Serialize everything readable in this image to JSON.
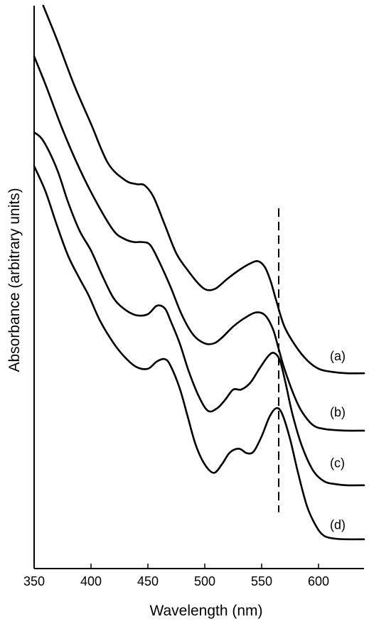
{
  "chart_data": {
    "type": "line",
    "title": "",
    "xlabel": "Wavelength (nm)",
    "ylabel": "Absorbance (arbitrary units)",
    "xlim": [
      350,
      640
    ],
    "ylim": [
      0,
      100
    ],
    "y_tick_labels_shown": false,
    "grid": false,
    "legend": "none",
    "x_ticks": [
      350,
      400,
      450,
      500,
      550,
      600
    ],
    "x_tick_labels": [
      "350",
      "400",
      "450",
      "500",
      "550",
      "600"
    ],
    "reference_line": {
      "x": 565,
      "y_range": [
        10,
        64
      ],
      "style": "dashed"
    },
    "series": [
      {
        "name": "(a)",
        "label_at": {
          "x": 610,
          "y": 37
        },
        "points": [
          [
            358,
            100
          ],
          [
            370,
            94
          ],
          [
            385,
            86
          ],
          [
            400,
            79
          ],
          [
            415,
            72
          ],
          [
            430,
            69
          ],
          [
            440,
            68.3
          ],
          [
            447,
            68.1
          ],
          [
            455,
            66
          ],
          [
            465,
            61
          ],
          [
            475,
            56
          ],
          [
            485,
            53
          ],
          [
            495,
            50.5
          ],
          [
            502,
            49.5
          ],
          [
            510,
            49.8
          ],
          [
            520,
            51.5
          ],
          [
            530,
            53
          ],
          [
            540,
            54.2
          ],
          [
            547,
            54.6
          ],
          [
            553,
            53.5
          ],
          [
            558,
            51
          ],
          [
            563,
            47.5
          ],
          [
            570,
            43
          ],
          [
            580,
            39.5
          ],
          [
            590,
            37
          ],
          [
            600,
            35.5
          ],
          [
            610,
            35
          ],
          [
            625,
            34.7
          ],
          [
            640,
            34.7
          ]
        ]
      },
      {
        "name": "(b)",
        "label_at": {
          "x": 610,
          "y": 27
        },
        "points": [
          [
            350,
            91
          ],
          [
            360,
            86
          ],
          [
            375,
            78
          ],
          [
            390,
            71
          ],
          [
            405,
            65
          ],
          [
            420,
            60
          ],
          [
            430,
            58.5
          ],
          [
            438,
            58
          ],
          [
            445,
            58
          ],
          [
            452,
            57.5
          ],
          [
            460,
            54.5
          ],
          [
            470,
            50
          ],
          [
            480,
            45
          ],
          [
            490,
            41.5
          ],
          [
            500,
            40
          ],
          [
            508,
            40
          ],
          [
            515,
            41
          ],
          [
            525,
            43
          ],
          [
            535,
            44.5
          ],
          [
            545,
            45.5
          ],
          [
            553,
            45
          ],
          [
            560,
            42.5
          ],
          [
            565,
            39
          ],
          [
            570,
            35.5
          ],
          [
            578,
            31
          ],
          [
            585,
            28
          ],
          [
            595,
            25.5
          ],
          [
            605,
            24.8
          ],
          [
            615,
            24.6
          ],
          [
            625,
            24.5
          ],
          [
            640,
            24.5
          ]
        ]
      },
      {
        "name": "(c)",
        "label_at": {
          "x": 610,
          "y": 18
        },
        "points": [
          [
            350,
            77.5
          ],
          [
            358,
            76
          ],
          [
            370,
            71
          ],
          [
            380,
            65
          ],
          [
            390,
            60
          ],
          [
            400,
            56.5
          ],
          [
            410,
            52
          ],
          [
            420,
            48
          ],
          [
            430,
            46
          ],
          [
            440,
            45
          ],
          [
            450,
            45.2
          ],
          [
            458,
            46.7
          ],
          [
            465,
            46.2
          ],
          [
            470,
            44
          ],
          [
            478,
            40
          ],
          [
            486,
            35
          ],
          [
            495,
            30.5
          ],
          [
            503,
            28
          ],
          [
            511,
            28.5
          ],
          [
            518,
            30
          ],
          [
            525,
            31.8
          ],
          [
            532,
            31.8
          ],
          [
            540,
            33
          ],
          [
            548,
            35.5
          ],
          [
            556,
            37.8
          ],
          [
            561,
            38.3
          ],
          [
            566,
            37
          ],
          [
            571,
            33
          ],
          [
            577,
            27.5
          ],
          [
            585,
            22
          ],
          [
            595,
            17.5
          ],
          [
            605,
            15.5
          ],
          [
            615,
            15
          ],
          [
            625,
            14.8
          ],
          [
            640,
            14.8
          ]
        ]
      },
      {
        "name": "(d)",
        "label_at": {
          "x": 610,
          "y": 7
        },
        "points": [
          [
            350,
            71.5
          ],
          [
            360,
            67
          ],
          [
            370,
            61
          ],
          [
            380,
            55.5
          ],
          [
            390,
            51.5
          ],
          [
            398,
            48.5
          ],
          [
            408,
            44
          ],
          [
            420,
            40
          ],
          [
            430,
            37.5
          ],
          [
            440,
            35.8
          ],
          [
            450,
            35.5
          ],
          [
            458,
            36.8
          ],
          [
            465,
            37.2
          ],
          [
            470,
            36
          ],
          [
            478,
            32
          ],
          [
            485,
            27
          ],
          [
            492,
            22
          ],
          [
            500,
            18.5
          ],
          [
            508,
            17
          ],
          [
            515,
            18.5
          ],
          [
            522,
            20.6
          ],
          [
            530,
            21.3
          ],
          [
            537,
            20.5
          ],
          [
            543,
            20.8
          ],
          [
            550,
            23.5
          ],
          [
            557,
            27
          ],
          [
            563,
            28.5
          ],
          [
            568,
            27.5
          ],
          [
            575,
            23
          ],
          [
            582,
            17
          ],
          [
            590,
            11
          ],
          [
            598,
            7.5
          ],
          [
            605,
            5.8
          ],
          [
            615,
            5.3
          ],
          [
            625,
            5.2
          ],
          [
            640,
            5.2
          ]
        ]
      }
    ]
  }
}
